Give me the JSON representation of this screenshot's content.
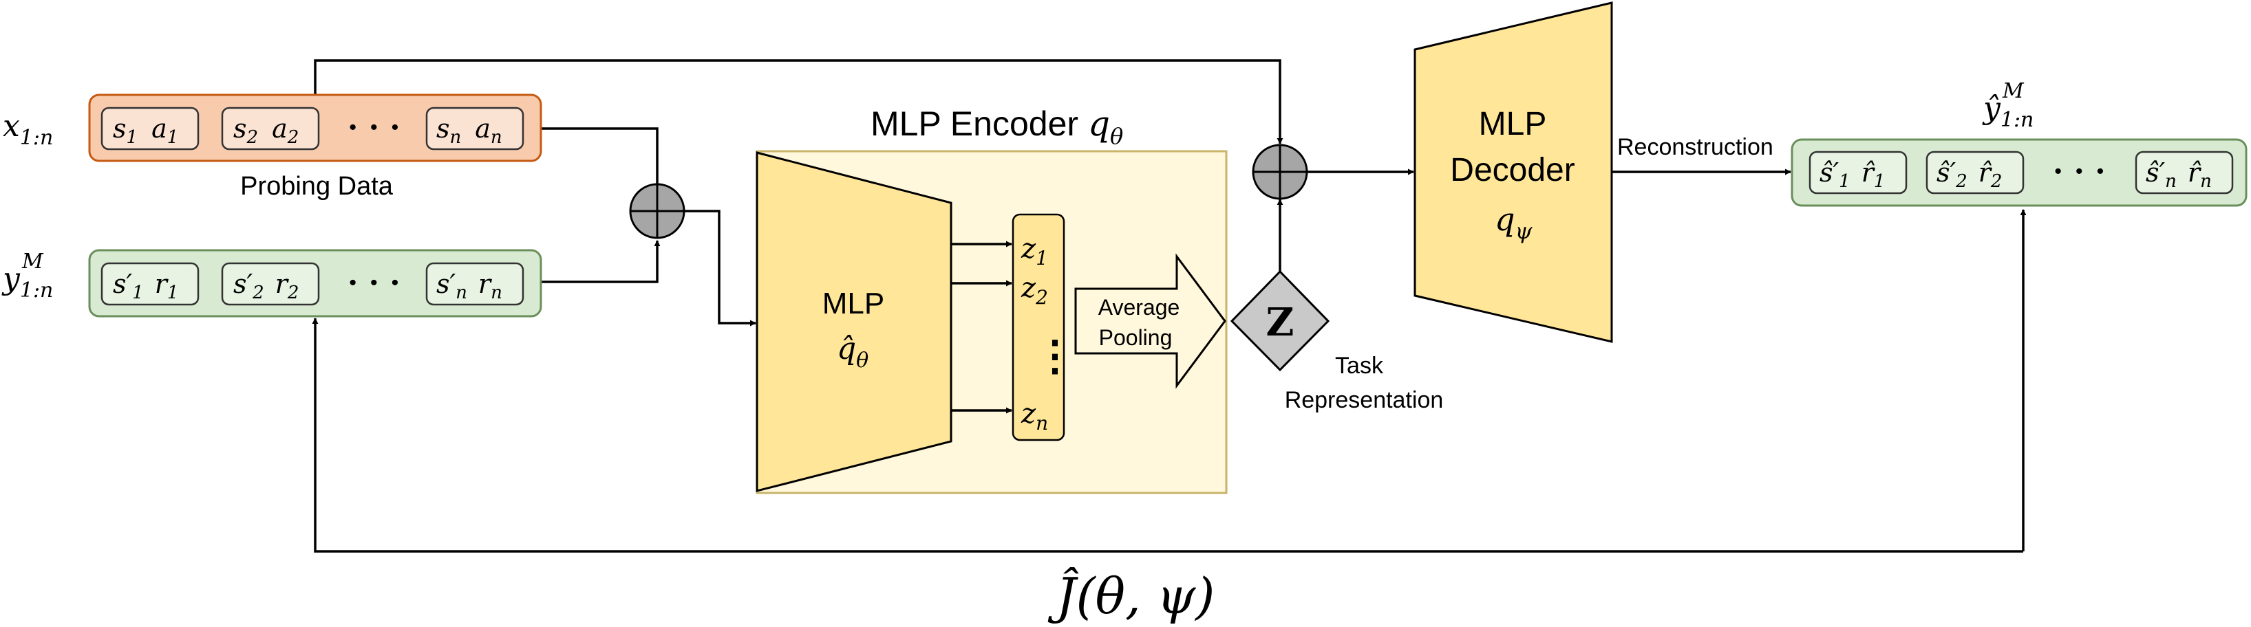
{
  "inputs": {
    "x_label": {
      "base": "x",
      "sub": "1:n"
    },
    "y_label": {
      "base": "y",
      "sub": "1:n",
      "sup": "M"
    },
    "probing_caption": "Probing Data",
    "x_cells": [
      {
        "a": "s",
        "a_sub": "1",
        "b": "a",
        "b_sub": "1"
      },
      {
        "a": "s",
        "a_sub": "2",
        "b": "a",
        "b_sub": "2"
      },
      {
        "a": "s",
        "a_sub": "n",
        "b": "a",
        "b_sub": "n"
      }
    ],
    "y_cells": [
      {
        "a": "s′",
        "a_sub": "1",
        "b": "r",
        "b_sub": "1"
      },
      {
        "a": "s′",
        "a_sub": "2",
        "b": "r",
        "b_sub": "2"
      },
      {
        "a": "s′",
        "a_sub": "n",
        "b": "r",
        "b_sub": "n"
      }
    ],
    "ellipsis": "· · ·"
  },
  "encoder": {
    "title": "MLP Encoder",
    "title_math": "q",
    "title_math_sub": "θ",
    "mlp_label": "MLP",
    "mlp_math": "q̂",
    "mlp_math_sub": "θ",
    "z_items": [
      {
        "base": "z",
        "sub": "1"
      },
      {
        "base": "z",
        "sub": "2"
      },
      {
        "base": "z",
        "sub": "n"
      }
    ],
    "z_ellipsis": "⋮",
    "pooling_line1": "Average",
    "pooling_line2": "Pooling"
  },
  "task": {
    "symbol": "Z",
    "caption_line1": "Task",
    "caption_line2": "Representation"
  },
  "decoder": {
    "line1": "MLP",
    "line2": "Decoder",
    "math": "q",
    "math_sub": "ψ"
  },
  "output": {
    "arrow_label": "Reconstruction",
    "label": {
      "base": "ŷ",
      "sub": "1:n",
      "sup": "M"
    },
    "cells": [
      {
        "a": "ŝ′",
        "a_sub": "1",
        "b": "r̂",
        "b_sub": "1"
      },
      {
        "a": "ŝ′",
        "a_sub": "2",
        "b": "r̂",
        "b_sub": "2"
      },
      {
        "a": "ŝ′",
        "a_sub": "n",
        "b": "r̂",
        "b_sub": "n"
      }
    ],
    "ellipsis": "· · ·"
  },
  "loss": {
    "text": "Ĵ(θ, ψ)"
  },
  "colors": {
    "x_fill": "#f8cbad",
    "x_stroke": "#c55a11",
    "y_fill": "#d9ead3",
    "y_stroke": "#6a8f5b",
    "encoder_bg": "#fff8dc",
    "encoder_stroke": "#c9b46a",
    "mlp_fill": "#ffe699",
    "mlp_stroke": "#000000",
    "sum_fill": "#a6a6a6",
    "task_fill": "#c9c9c9"
  }
}
